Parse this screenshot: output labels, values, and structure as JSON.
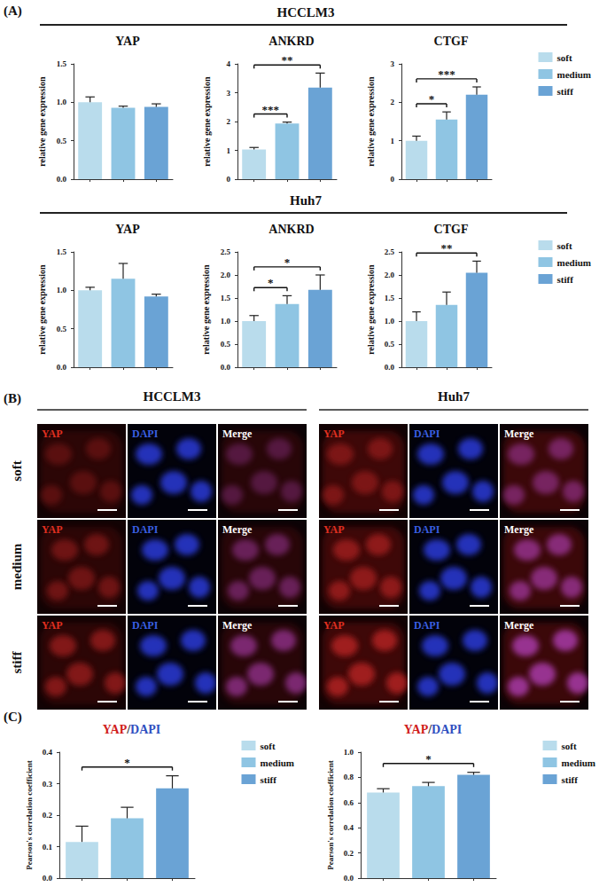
{
  "chart_data": [
    {
      "type": "bar",
      "group": "HCCLM3",
      "title": "YAP",
      "y_label": "relative gene expression",
      "categories": [
        "soft",
        "medium",
        "stiff"
      ],
      "colors": [
        "#b9dcec",
        "#8fc5e3",
        "#6aa3d5"
      ],
      "values": [
        1.0,
        0.93,
        0.94
      ],
      "errors": [
        0.07,
        0.02,
        0.04
      ],
      "ylim": [
        0,
        1.5
      ],
      "yticks": [
        {
          "value": 0,
          "label": "0.0"
        },
        {
          "value": 0.5,
          "label": "0.5"
        },
        {
          "value": 1,
          "label": "1.0"
        },
        {
          "value": 1.5,
          "label": "1.5"
        }
      ],
      "significance": [],
      "grid": false,
      "tick_labels": "y"
    },
    {
      "type": "bar",
      "group": "HCCLM3",
      "title": "ANKRD",
      "y_label": "relative gene expression",
      "categories": [
        "soft",
        "medium",
        "stiff"
      ],
      "colors": [
        "#b9dcec",
        "#8fc5e3",
        "#6aa3d5"
      ],
      "values": [
        1.03,
        1.93,
        3.18
      ],
      "errors": [
        0.07,
        0.05,
        0.5
      ],
      "ylim": [
        0,
        4
      ],
      "yticks": [
        0,
        1,
        2,
        3,
        4
      ],
      "significance": [
        {
          "from": "soft",
          "to": "medium",
          "label": "***"
        },
        {
          "from": "soft",
          "to": "stiff",
          "label": "**"
        }
      ],
      "grid": false,
      "tick_labels": "y"
    },
    {
      "type": "bar",
      "group": "HCCLM3",
      "title": "CTGF",
      "y_label": "relative gene expression",
      "categories": [
        "soft",
        "medium",
        "stiff"
      ],
      "colors": [
        "#b9dcec",
        "#8fc5e3",
        "#6aa3d5"
      ],
      "values": [
        1.0,
        1.55,
        2.2
      ],
      "errors": [
        0.12,
        0.2,
        0.2
      ],
      "ylim": [
        0,
        3
      ],
      "yticks": [
        0,
        1,
        2,
        3
      ],
      "significance": [
        {
          "from": "soft",
          "to": "medium",
          "label": "*"
        },
        {
          "from": "soft",
          "to": "stiff",
          "label": "***"
        }
      ],
      "grid": false,
      "tick_labels": "y",
      "legend": "right"
    },
    {
      "type": "bar",
      "group": "Huh7",
      "title": "YAP",
      "y_label": "relative gene expression",
      "categories": [
        "soft",
        "medium",
        "stiff"
      ],
      "colors": [
        "#b9dcec",
        "#8fc5e3",
        "#6aa3d5"
      ],
      "values": [
        1.0,
        1.15,
        0.92
      ],
      "errors": [
        0.04,
        0.2,
        0.03
      ],
      "ylim": [
        0,
        1.5
      ],
      "yticks": [
        {
          "value": 0,
          "label": "0.0"
        },
        {
          "value": 0.5,
          "label": "0.5"
        },
        {
          "value": 1,
          "label": "1.0"
        },
        {
          "value": 1.5,
          "label": "1.5"
        }
      ],
      "significance": [],
      "grid": false,
      "tick_labels": "y"
    },
    {
      "type": "bar",
      "group": "Huh7",
      "title": "ANKRD",
      "y_label": "relative gene expression",
      "categories": [
        "soft",
        "medium",
        "stiff"
      ],
      "colors": [
        "#b9dcec",
        "#8fc5e3",
        "#6aa3d5"
      ],
      "values": [
        1.0,
        1.37,
        1.68
      ],
      "errors": [
        0.12,
        0.18,
        0.32
      ],
      "ylim": [
        0,
        2.5
      ],
      "yticks": [
        {
          "value": 0,
          "label": "0.0"
        },
        {
          "value": 0.5,
          "label": "0.5"
        },
        {
          "value": 1,
          "label": "1.0"
        },
        {
          "value": 1.5,
          "label": "1.5"
        },
        {
          "value": 2,
          "label": "2.0"
        },
        {
          "value": 2.5,
          "label": "2.5"
        }
      ],
      "significance": [
        {
          "from": "soft",
          "to": "medium",
          "label": "*"
        },
        {
          "from": "soft",
          "to": "stiff",
          "label": "*"
        }
      ],
      "grid": false,
      "tick_labels": "y"
    },
    {
      "type": "bar",
      "group": "Huh7",
      "title": "CTGF",
      "y_label": "relative gene expression",
      "categories": [
        "soft",
        "medium",
        "stiff"
      ],
      "colors": [
        "#b9dcec",
        "#8fc5e3",
        "#6aa3d5"
      ],
      "values": [
        1.0,
        1.35,
        2.05
      ],
      "errors": [
        0.2,
        0.28,
        0.25
      ],
      "ylim": [
        0,
        2.5
      ],
      "yticks": [
        {
          "value": 0,
          "label": "0.0"
        },
        {
          "value": 0.5,
          "label": "0.5"
        },
        {
          "value": 1,
          "label": "1.0"
        },
        {
          "value": 1.5,
          "label": "1.5"
        },
        {
          "value": 2,
          "label": "2.0"
        },
        {
          "value": 2.5,
          "label": "2.5"
        }
      ],
      "significance": [
        {
          "from": "soft",
          "to": "stiff",
          "label": "**"
        }
      ],
      "grid": false,
      "tick_labels": "y",
      "legend": "right"
    },
    {
      "type": "bar",
      "title": "YAP/DAPI",
      "y_label": "Pearson's correlation coefficient",
      "categories": [
        "soft",
        "medium",
        "stiff"
      ],
      "colors": [
        "#b9dcec",
        "#8fc5e3",
        "#6aa3d5"
      ],
      "values": [
        0.115,
        0.19,
        0.285
      ],
      "errors": [
        0.05,
        0.035,
        0.04
      ],
      "ylim": [
        0,
        0.4
      ],
      "yticks": [
        {
          "value": 0,
          "label": "0.0"
        },
        {
          "value": 0.1,
          "label": "0.1"
        },
        {
          "value": 0.2,
          "label": "0.2"
        },
        {
          "value": 0.3,
          "label": "0.3"
        },
        {
          "value": 0.4,
          "label": "0.4"
        }
      ],
      "significance": [
        {
          "from": "soft",
          "to": "stiff",
          "label": "*"
        }
      ],
      "grid": false,
      "tick_labels": "y",
      "legend": "right"
    },
    {
      "type": "bar",
      "title": "YAP/DAPI",
      "y_label": "Pearson's correlation coefficient",
      "categories": [
        "soft",
        "medium",
        "stiff"
      ],
      "colors": [
        "#b9dcec",
        "#8fc5e3",
        "#6aa3d5"
      ],
      "values": [
        0.68,
        0.73,
        0.82
      ],
      "errors": [
        0.03,
        0.03,
        0.02
      ],
      "ylim": [
        0,
        1
      ],
      "yticks": [
        {
          "value": 0,
          "label": "0.0"
        },
        {
          "value": 0.2,
          "label": "0.2"
        },
        {
          "value": 0.4,
          "label": "0.4"
        },
        {
          "value": 0.6,
          "label": "0.6"
        },
        {
          "value": 0.8,
          "label": "0.8"
        },
        {
          "value": 1,
          "label": "1.0"
        }
      ],
      "significance": [
        {
          "from": "soft",
          "to": "stiff",
          "label": "*"
        }
      ],
      "grid": false,
      "tick_labels": "y",
      "legend": "right"
    }
  ],
  "figure": {
    "panel_labels": [
      "(A)",
      "(B)",
      "(C)"
    ],
    "image_panel": {
      "groups": [
        "HCCLM3",
        "Huh7"
      ],
      "rows": [
        "soft",
        "medium",
        "stiff"
      ],
      "channels": [
        "YAP",
        "DAPI",
        "Merge"
      ]
    }
  }
}
